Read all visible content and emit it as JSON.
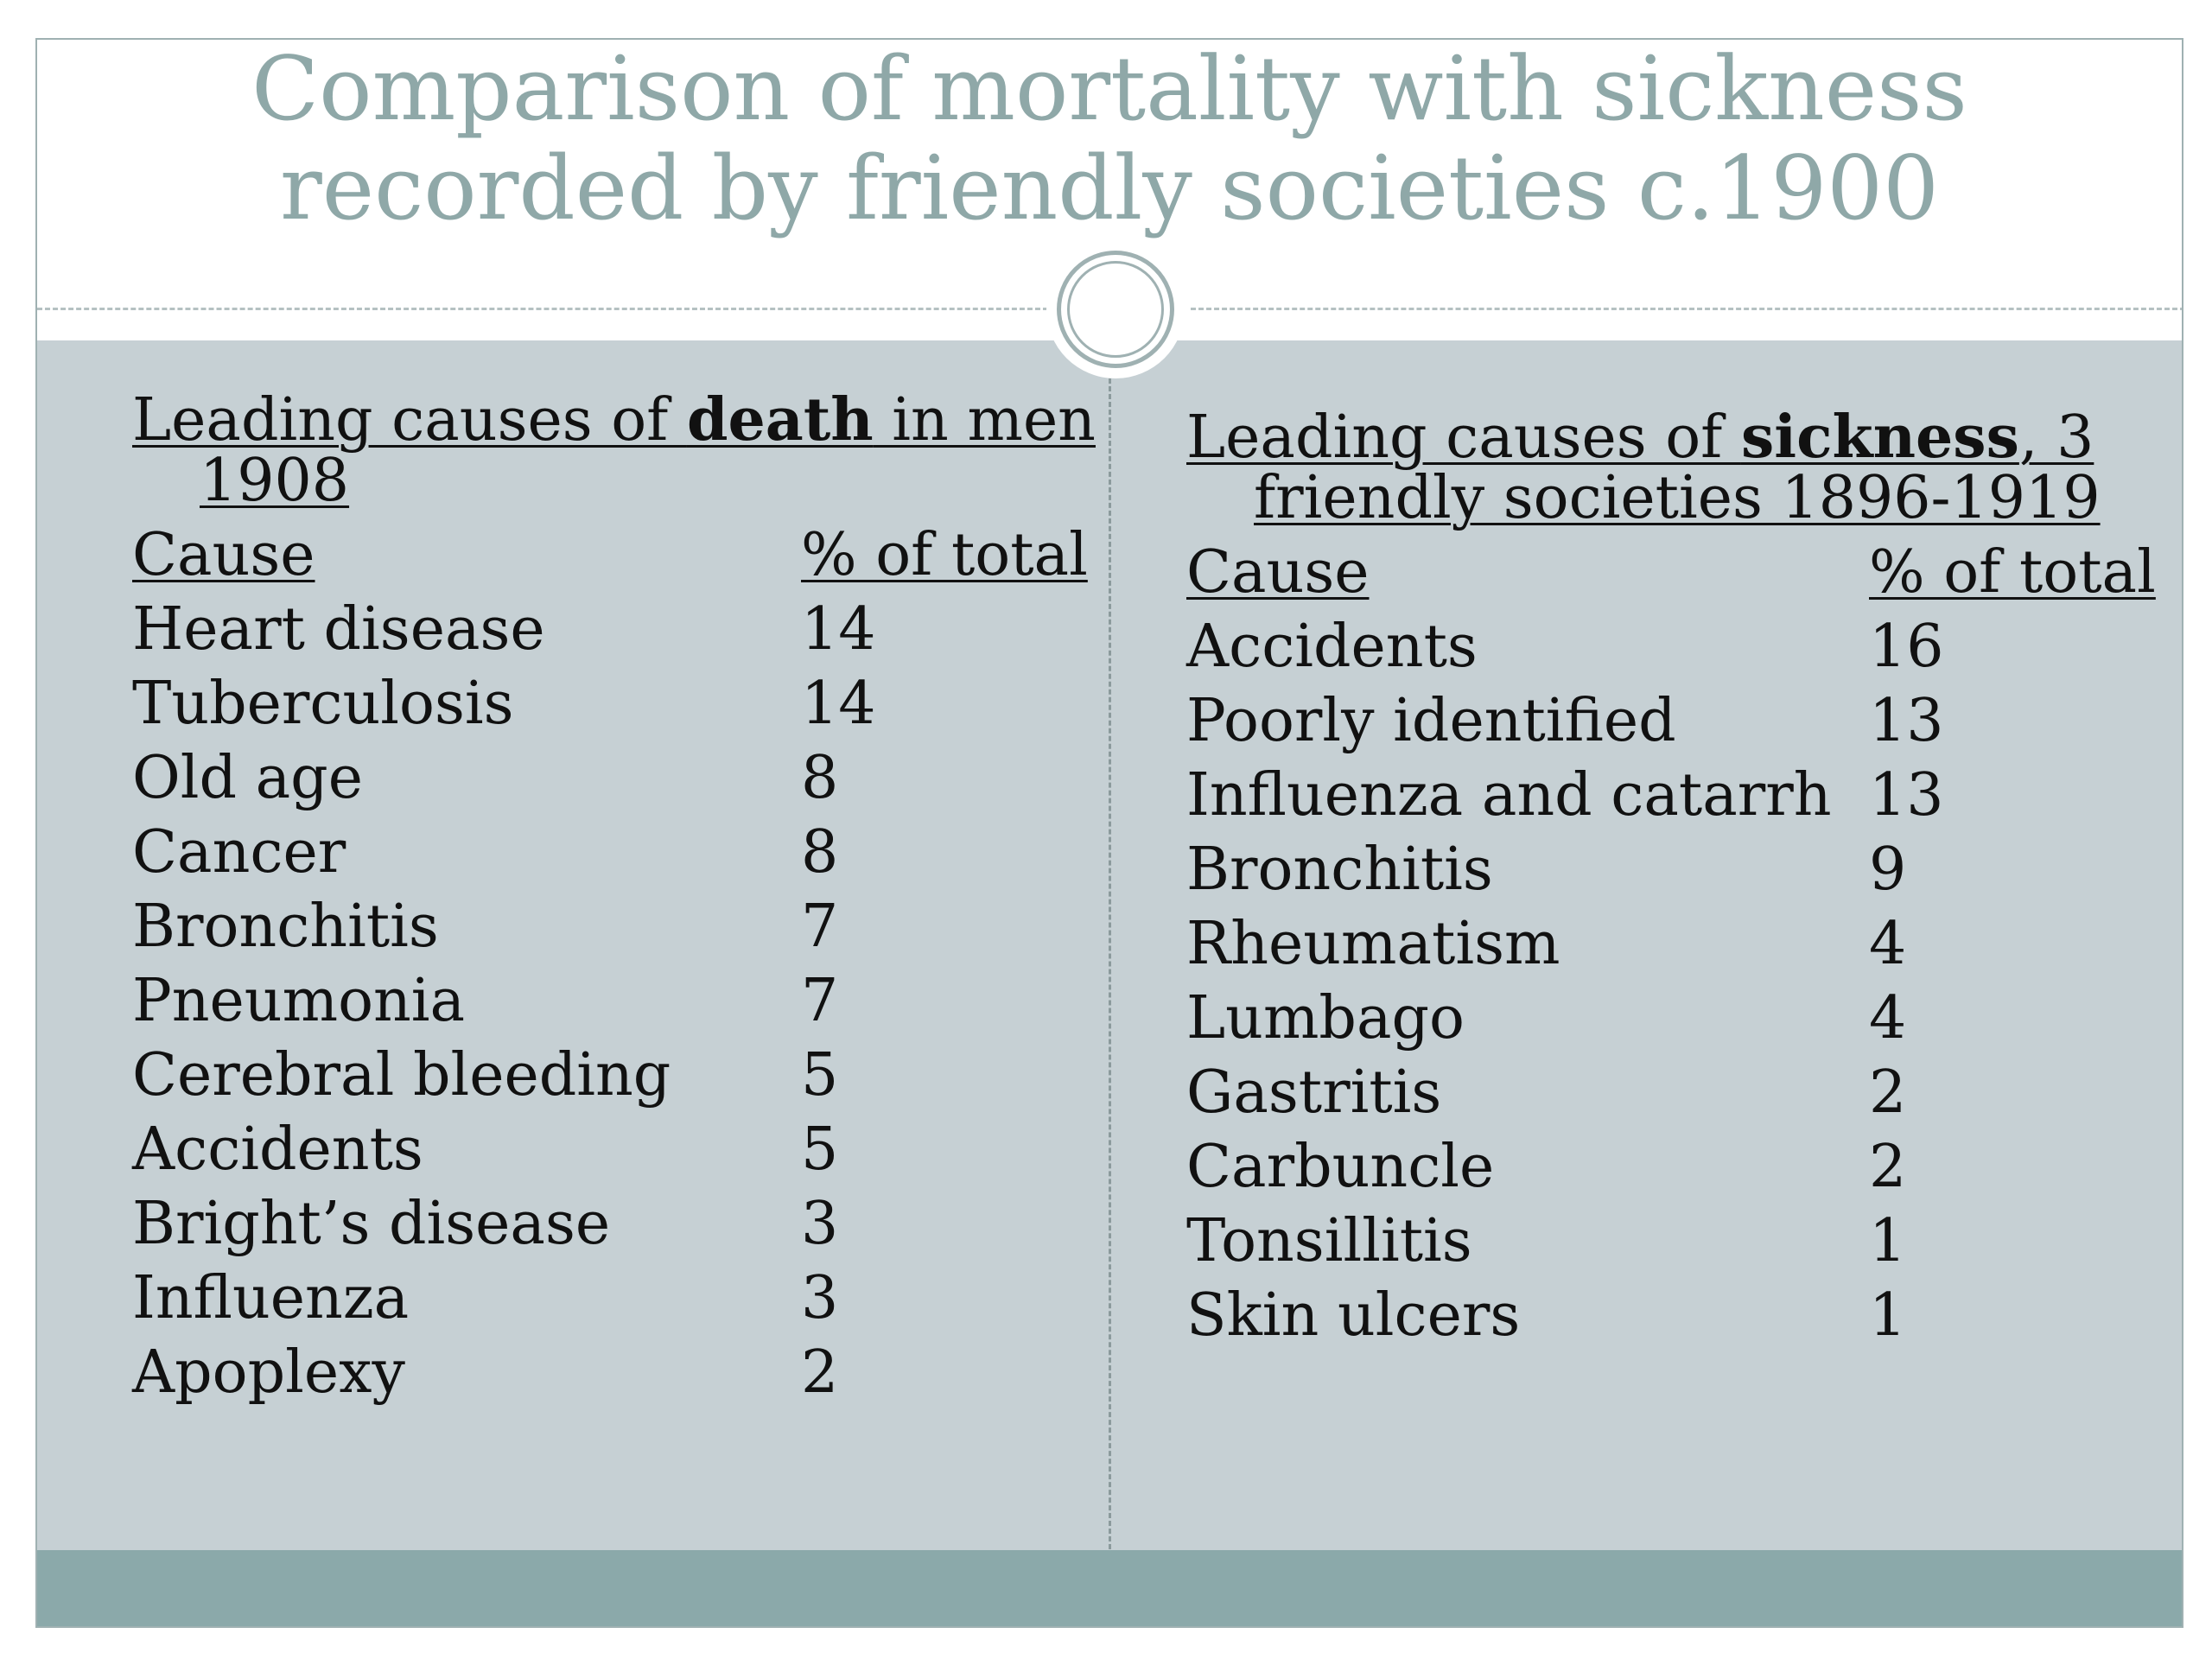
{
  "title": "Comparison of mortality with sickness recorded by friendly societies c.1900",
  "death_table": {
    "heading_pre": "Leading causes of ",
    "heading_bold": "death",
    "heading_post": " in men 1908",
    "col_cause": "Cause",
    "col_pct": "% of total",
    "rows": [
      {
        "cause": "Heart disease",
        "pct": "14"
      },
      {
        "cause": "Tuberculosis",
        "pct": "14"
      },
      {
        "cause": "Old age",
        "pct": "8"
      },
      {
        "cause": "Cancer",
        "pct": "8"
      },
      {
        "cause": "Bronchitis",
        "pct": "7"
      },
      {
        "cause": "Pneumonia",
        "pct": "7"
      },
      {
        "cause": "Cerebral bleeding",
        "pct": "5"
      },
      {
        "cause": "Accidents",
        "pct": "5"
      },
      {
        "cause": "Bright’s disease",
        "pct": "3"
      },
      {
        "cause": "Influenza",
        "pct": "3"
      },
      {
        "cause": "Apoplexy",
        "pct": "2"
      }
    ]
  },
  "sickness_table": {
    "heading_pre": "Leading causes of ",
    "heading_bold": "sickness",
    "heading_post": ", 3 friendly societies 1896-1919",
    "col_cause": "Cause",
    "col_pct": "% of total",
    "rows": [
      {
        "cause": "Accidents",
        "pct": "16"
      },
      {
        "cause": "Poorly identified",
        "pct": "13"
      },
      {
        "cause": "Influenza and catarrh",
        "pct": "13"
      },
      {
        "cause": "Bronchitis",
        "pct": "9"
      },
      {
        "cause": "Rheumatism",
        "pct": "4"
      },
      {
        "cause": "Lumbago",
        "pct": "4"
      },
      {
        "cause": "Gastritis",
        "pct": "2"
      },
      {
        "cause": "Carbuncle",
        "pct": "2"
      },
      {
        "cause": "Tonsillitis",
        "pct": "1"
      },
      {
        "cause": "Skin ulcers",
        "pct": "1"
      }
    ]
  },
  "colors": {
    "title": "#8fa8a8",
    "panel": "#c6d0d4",
    "footer": "#8ba9aa",
    "ornament": "#9fb1b2"
  }
}
